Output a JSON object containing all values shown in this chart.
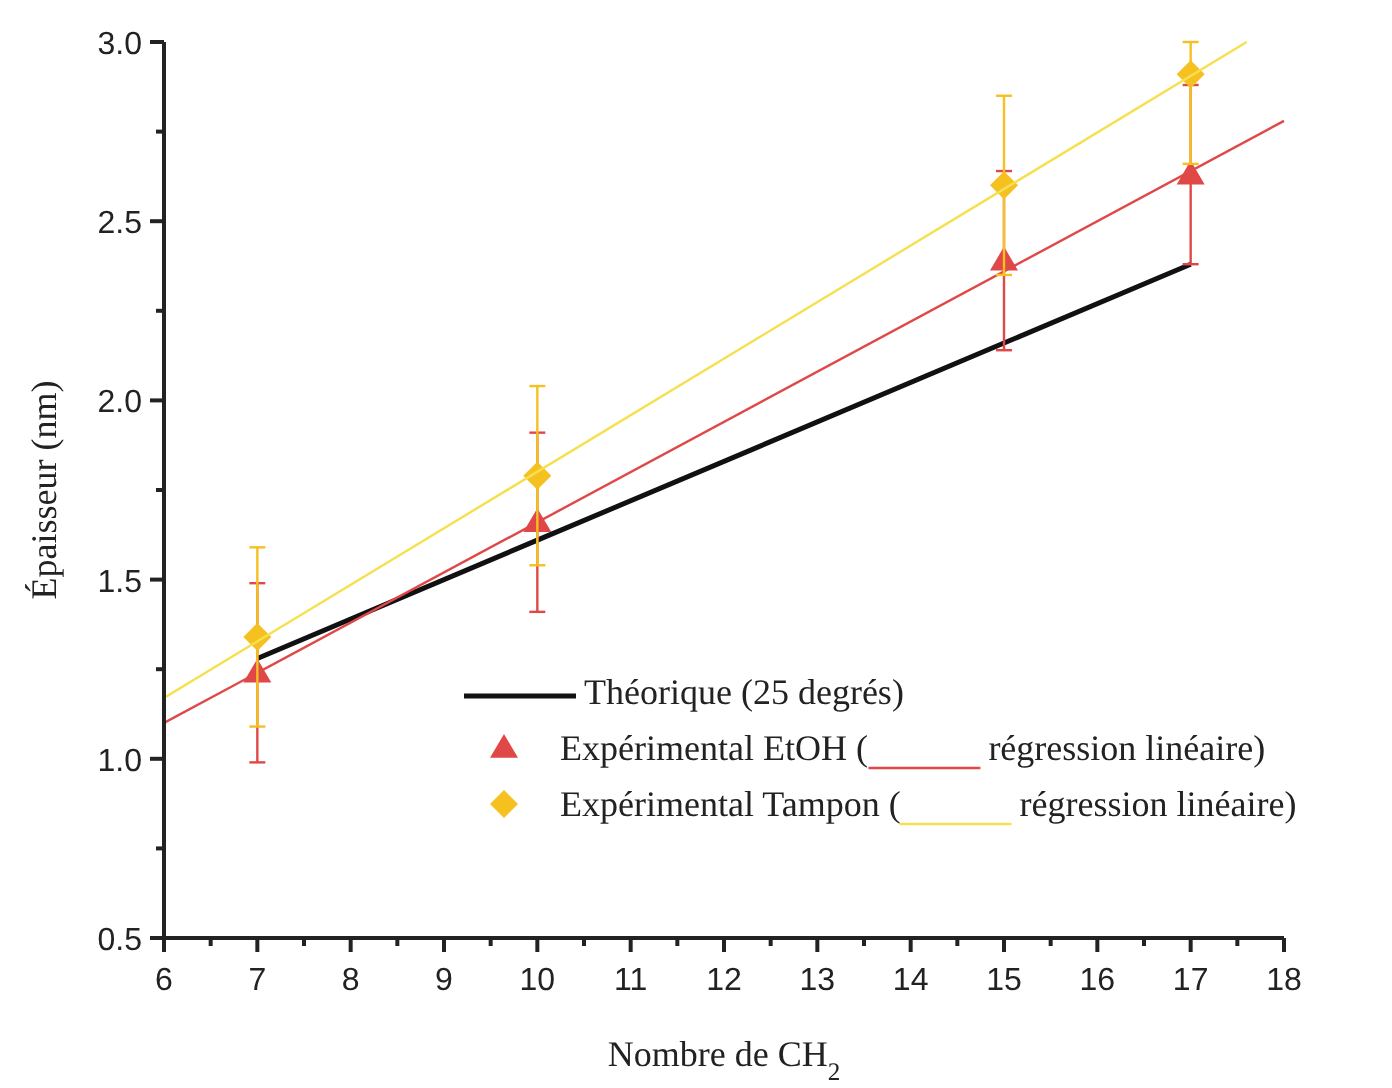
{
  "chart_data": {
    "type": "scatter",
    "xlabel": "Nombre de CH$_{2}$",
    "ylabel": "Épaisseur (nm)",
    "xlim": [
      6,
      18
    ],
    "xticks": [
      6,
      7,
      8,
      9,
      10,
      11,
      12,
      13,
      14,
      15,
      16,
      17,
      18
    ],
    "ylim": [
      0.5,
      3.0
    ],
    "yticks": [
      {
        "value": 0.5,
        "label": "0.5"
      },
      {
        "value": 1,
        "label": "1.0"
      },
      {
        "value": 1.5,
        "label": "1.5"
      },
      {
        "value": 2,
        "label": "2.0"
      },
      {
        "value": 2.5,
        "label": "2.5"
      },
      {
        "value": 3,
        "label": "3.0"
      }
    ],
    "grid": false,
    "legend": "bottom right",
    "series": [
      {
        "name": "Théorique (25 degrés)",
        "type": "line",
        "color": "#111111",
        "x": [
          7,
          10,
          15,
          17
        ],
        "values": [
          1.28,
          1.61,
          2.16,
          2.38
        ]
      },
      {
        "name": "Expérimental EtOH (",
        "marker": "triangle",
        "color": "#e04848",
        "x": [
          7,
          10,
          15,
          17
        ],
        "values": [
          1.24,
          1.66,
          2.39,
          2.63
        ],
        "errors": [
          0.25,
          0.25,
          0.25,
          0.25
        ]
      },
      {
        "name": "régression linéaire)",
        "type": "line",
        "color": "#e04848",
        "x": [
          6,
          18
        ],
        "values": [
          1.1,
          2.78
        ]
      },
      {
        "name": "Expérimental Tampon (",
        "marker": "diamond",
        "color": "#f5c020",
        "x": [
          7,
          10,
          15,
          17
        ],
        "values": [
          1.34,
          1.79,
          2.6,
          2.91
        ],
        "errors": [
          0.25,
          0.25,
          0.25,
          [
            2.66,
            3.0
          ]
        ]
      },
      {
        "name": "régression linéaire)",
        "type": "line",
        "color": "#f5e050",
        "x": [
          6,
          17.6
        ],
        "values": [
          1.17,
          3.0
        ]
      }
    ]
  }
}
